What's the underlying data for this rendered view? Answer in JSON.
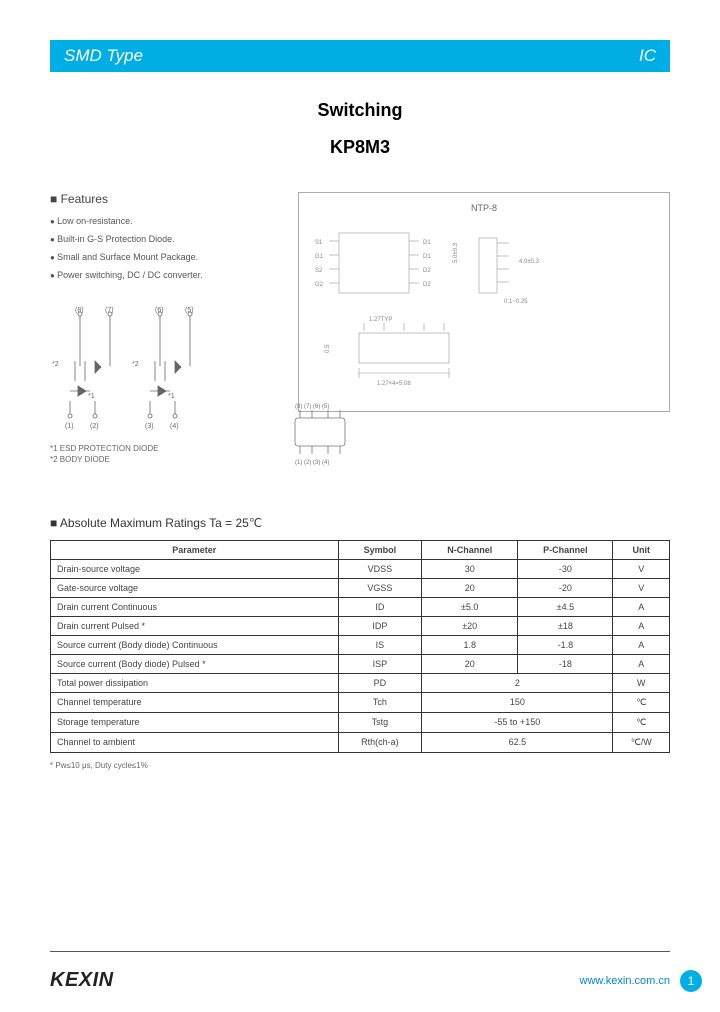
{
  "header": {
    "left": "SMD Type",
    "right": "IC"
  },
  "title": {
    "line1": "Switching",
    "line2": "KP8M3"
  },
  "features": {
    "heading": "Features",
    "items": [
      "Low on-resistance.",
      "Built-in G-S Protection Diode.",
      "Small and Surface Mount Package.",
      "Power switching, DC / DC converter."
    ]
  },
  "schematic": {
    "pins_top": [
      "(8)",
      "(7)",
      "(6)",
      "(5)"
    ],
    "pins_bottom": [
      "(1)",
      "(2)",
      "(3)",
      "(4)"
    ],
    "note1": "*1 ESD PROTECTION DIODE",
    "note2": "*2 BODY DIODE",
    "marker1": "*2",
    "marker2": "*1"
  },
  "package": {
    "title": "NTP-8",
    "pin_labels_left": [
      "S1",
      "G1",
      "S2",
      "G2"
    ],
    "pin_labels_right": [
      "D1",
      "D1",
      "D2",
      "D2"
    ],
    "dim_text": "1.27×4=5.08"
  },
  "ratings": {
    "heading": "Absolute Maximum Ratings Ta = 25℃",
    "columns": [
      "Parameter",
      "Symbol",
      "N-Channel",
      "P-Channel",
      "Unit"
    ],
    "rows": [
      {
        "param": "Drain-source voltage",
        "sym": "VDSS",
        "n": "30",
        "p": "-30",
        "unit": "V",
        "merge": false
      },
      {
        "param": "Gate-source voltage",
        "sym": "VGSS",
        "n": "20",
        "p": "-20",
        "unit": "V",
        "merge": false
      },
      {
        "param": "Drain current Continuous",
        "sym": "ID",
        "n": "±5.0",
        "p": "±4.5",
        "unit": "A",
        "merge": false
      },
      {
        "param": "Drain current Pulsed *",
        "sym": "IDP",
        "n": "±20",
        "p": "±18",
        "unit": "A",
        "merge": false
      },
      {
        "param": "Source current (Body diode) Continuous",
        "sym": "IS",
        "n": "1.8",
        "p": "-1.8",
        "unit": "A",
        "merge": false
      },
      {
        "param": "Source current (Body diode) Pulsed *",
        "sym": "ISP",
        "n": "20",
        "p": "-18",
        "unit": "A",
        "merge": false
      },
      {
        "param": "Total power dissipation",
        "sym": "PD",
        "n": "2",
        "p": "",
        "unit": "W",
        "merge": true
      },
      {
        "param": "Channel temperature",
        "sym": "Tch",
        "n": "150",
        "p": "",
        "unit": "℃",
        "merge": true
      },
      {
        "param": "Storage temperature",
        "sym": "Tstg",
        "n": "-55 to +150",
        "p": "",
        "unit": "℃",
        "merge": true
      },
      {
        "param": "Channel to ambient",
        "sym": "Rth(ch-a)",
        "n": "62.5",
        "p": "",
        "unit": "℃/W",
        "merge": true
      }
    ],
    "footnote": "* Pw≤10 μs, Duty cycle≤1%"
  },
  "footer": {
    "logo": "KEXIN",
    "url": "www.kexin.com.cn",
    "page": "1"
  },
  "colors": {
    "accent": "#00aee6",
    "text": "#444",
    "border": "#333"
  }
}
